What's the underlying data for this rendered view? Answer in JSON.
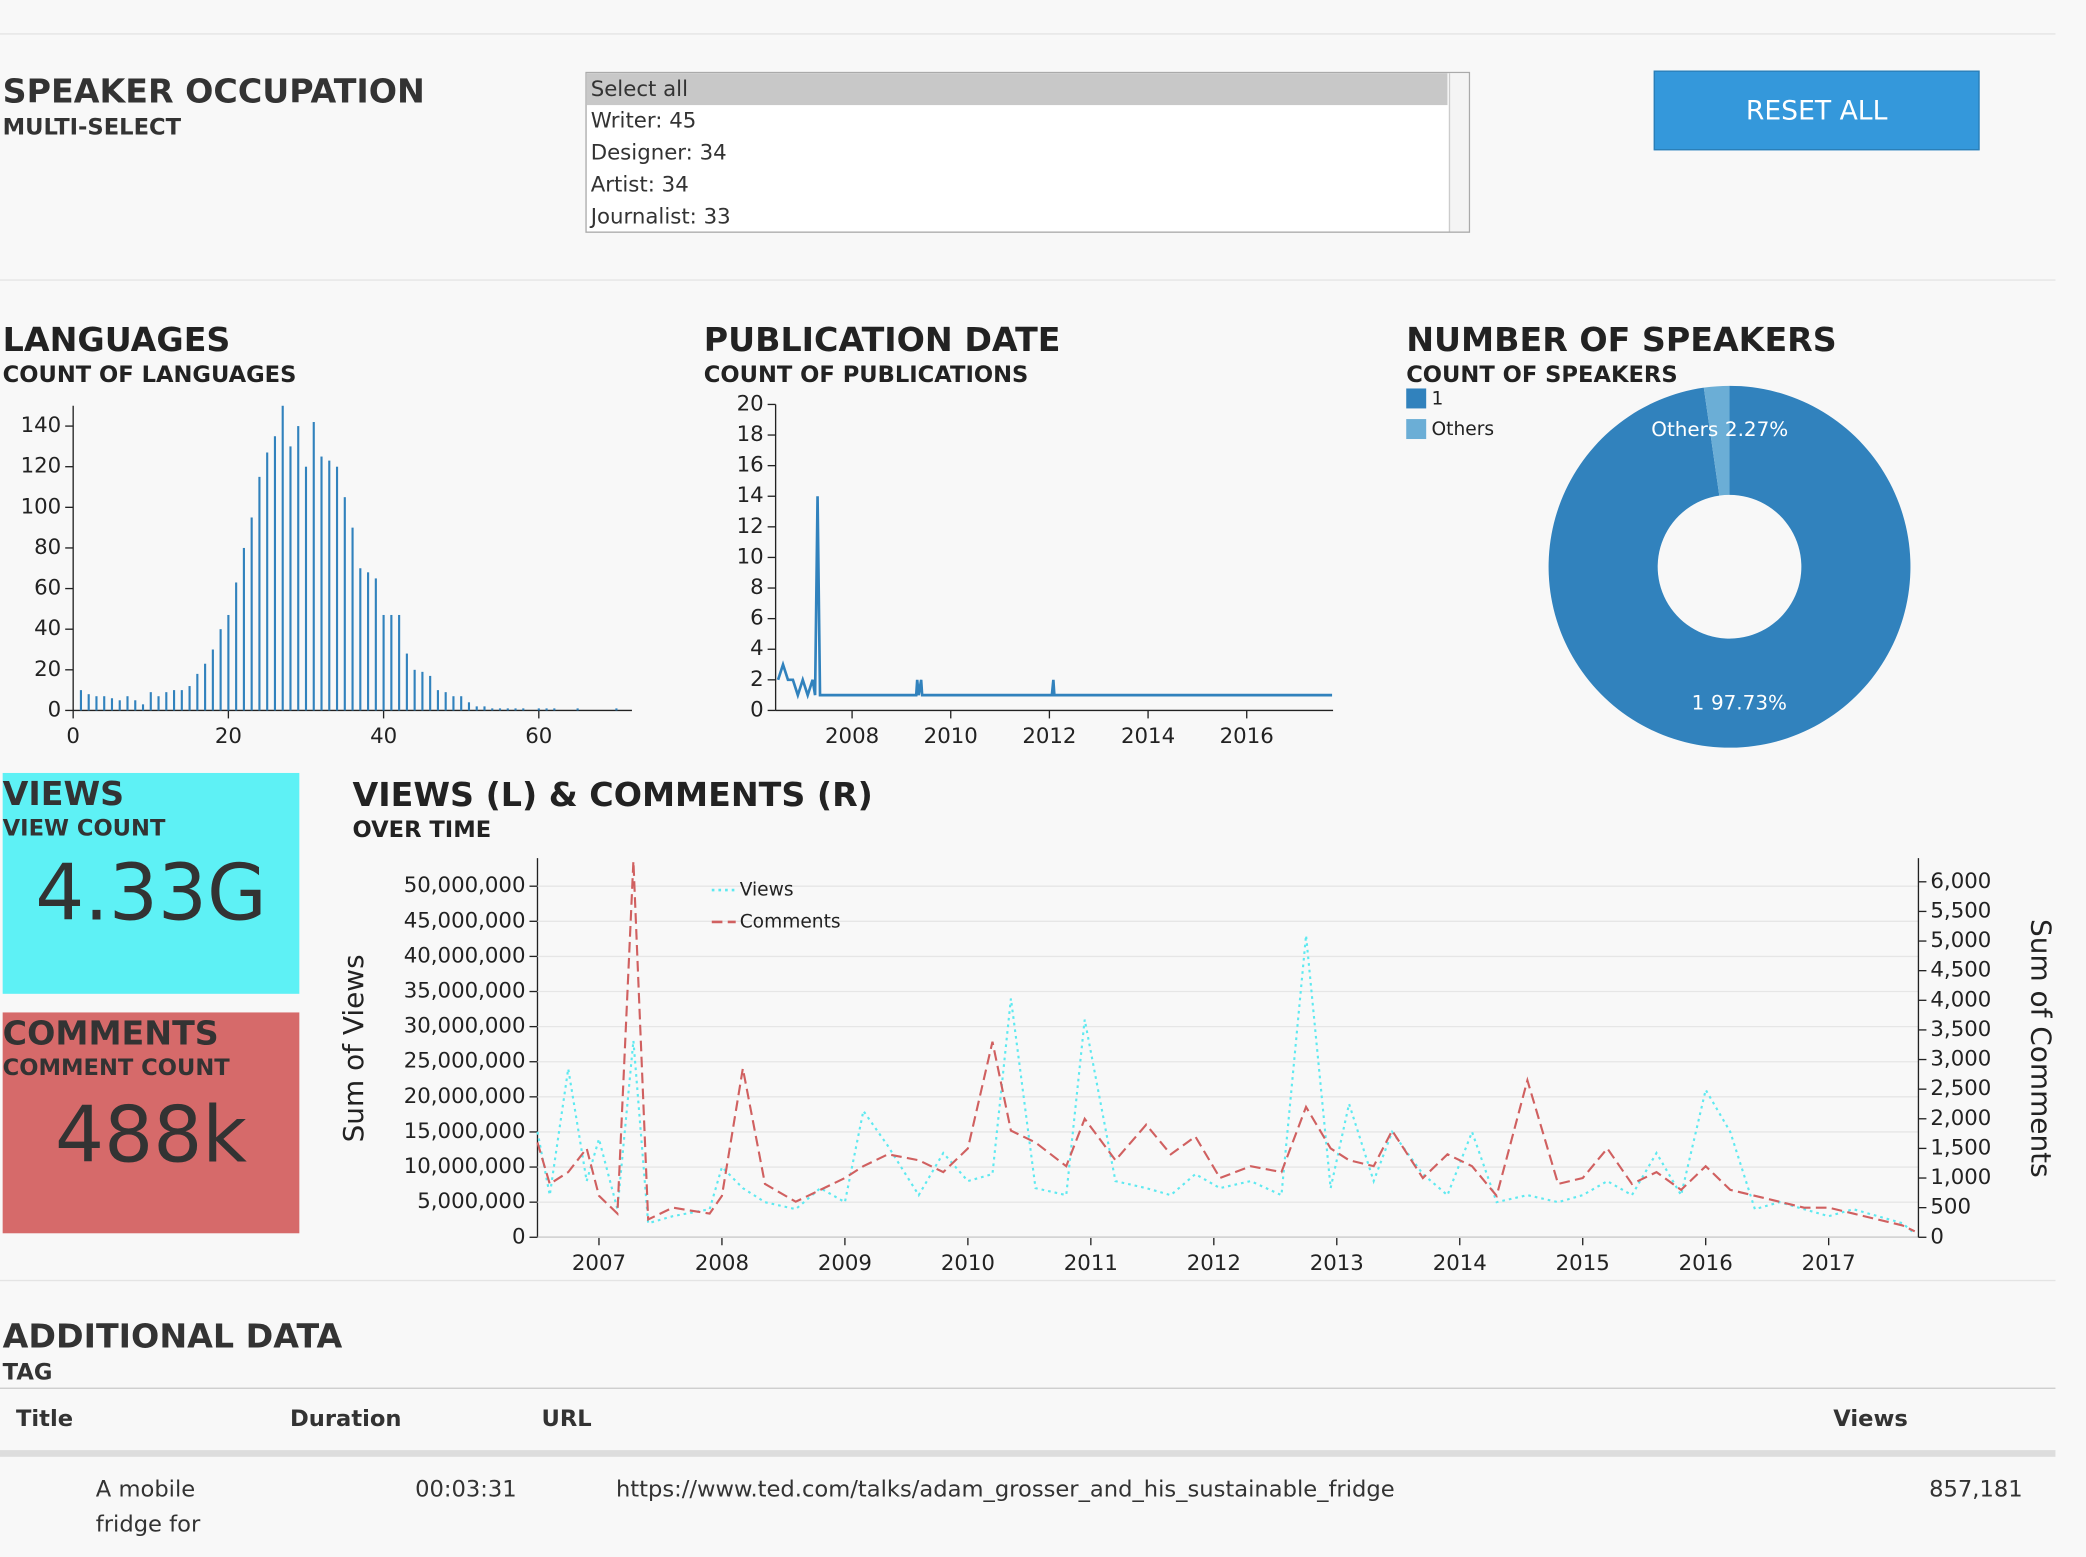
{
  "speaker_occupation": {
    "title": "SPEAKER OCCUPATION",
    "subtitle": "MULTI-SELECT",
    "options": [
      "Select all",
      "Writer: 45",
      "Designer: 34",
      "Artist: 34",
      "Journalist: 33"
    ],
    "button": "RESET ALL"
  },
  "kpis": [
    {
      "title": "VIEWS",
      "subtitle": "VIEW COUNT",
      "value": "4.33G",
      "color": "#5ef1f5"
    },
    {
      "title": "COMMENTS",
      "subtitle": "COMMENT COUNT",
      "value": "488k",
      "color": "#d66a6a"
    }
  ],
  "table": {
    "title": "ADDITIONAL DATA",
    "subtitle": "TAG",
    "columns": [
      "Title",
      "Duration",
      "URL",
      "Views"
    ],
    "rows": [
      [
        "A mobile fridge for",
        "00:03:31",
        "https://www.ted.com/talks/adam_grosser_and_his_sustainable_fridge",
        "857,181"
      ]
    ]
  },
  "chart_data": [
    {
      "type": "bar",
      "title": "LANGUAGES",
      "subtitle": "COUNT OF LANGUAGES",
      "color": "#3182bd",
      "x": [
        0,
        1,
        2,
        3,
        4,
        5,
        6,
        7,
        8,
        9,
        10,
        11,
        12,
        13,
        14,
        15,
        16,
        17,
        18,
        19,
        20,
        21,
        22,
        23,
        24,
        25,
        26,
        27,
        28,
        29,
        30,
        31,
        32,
        33,
        34,
        35,
        36,
        37,
        38,
        39,
        40,
        41,
        42,
        43,
        44,
        45,
        46,
        47,
        48,
        49,
        50,
        51,
        52,
        53,
        54,
        55,
        56,
        57,
        58,
        59,
        60,
        61,
        62,
        63,
        64,
        65,
        66,
        67,
        68,
        69,
        70
      ],
      "values": [
        0,
        10,
        8,
        7,
        7,
        6,
        5,
        7,
        5,
        3,
        9,
        7,
        9,
        10,
        10,
        12,
        18,
        23,
        30,
        40,
        47,
        63,
        80,
        95,
        115,
        127,
        135,
        150,
        130,
        140,
        120,
        142,
        125,
        123,
        120,
        105,
        90,
        70,
        68,
        65,
        47,
        47,
        47,
        28,
        20,
        19,
        17,
        10,
        9,
        7,
        7,
        4,
        2,
        2,
        1,
        1,
        1,
        1,
        1,
        0,
        1,
        1,
        1,
        0,
        0,
        1,
        0,
        0,
        0,
        0,
        1
      ],
      "xlim": [
        0,
        72
      ],
      "ylim": [
        0,
        150
      ],
      "xticks": [
        0,
        20,
        40,
        60
      ],
      "yticks": [
        0,
        20,
        40,
        60,
        80,
        100,
        120,
        140
      ]
    },
    {
      "type": "line",
      "title": "PUBLICATION DATE",
      "subtitle": "COUNT OF PUBLICATIONS",
      "color": "#3182bd",
      "x": [
        2006.5,
        2006.6,
        2006.7,
        2006.8,
        2006.9,
        2007.0,
        2007.1,
        2007.2,
        2007.25,
        2007.3,
        2007.35,
        2009.3,
        2009.32,
        2009.35,
        2009.4,
        2009.42,
        2009.45,
        2012.05,
        2012.08,
        2012.1,
        2017.73
      ],
      "values": [
        2,
        3,
        2,
        2,
        1,
        2,
        1,
        2,
        1,
        14,
        1,
        1,
        2,
        1,
        2,
        1,
        1,
        1,
        2,
        1,
        1
      ],
      "xlim": [
        2006.45,
        2017.75
      ],
      "ylim": [
        0,
        20
      ],
      "xticks": [
        2008,
        2010,
        2012,
        2014,
        2016
      ],
      "yticks": [
        0,
        2,
        4,
        6,
        8,
        10,
        12,
        14,
        16,
        18,
        20
      ]
    },
    {
      "type": "pie",
      "title": "NUMBER OF SPEAKERS",
      "subtitle": "COUNT OF SPEAKERS",
      "categories": [
        "1",
        "Others"
      ],
      "values": [
        97.73,
        2.27
      ],
      "value_labels": [
        "97.73%",
        "2.27%"
      ],
      "colors": [
        "#3182bd",
        "#6baed6"
      ]
    },
    {
      "type": "line",
      "title": "VIEWS (L) & COMMENTS (R)",
      "subtitle": "OVER TIME",
      "ylabel": "Sum of Views",
      "y2label": "Sum of Comments",
      "grid": true,
      "x": [
        2006.5,
        2006.6,
        2006.75,
        2006.9,
        2007.0,
        2007.15,
        2007.28,
        2007.4,
        2007.6,
        2007.9,
        2008.0,
        2008.17,
        2008.35,
        2008.6,
        2008.8,
        2009.0,
        2009.15,
        2009.35,
        2009.6,
        2009.8,
        2010.0,
        2010.2,
        2010.35,
        2010.55,
        2010.8,
        2010.95,
        2011.2,
        2011.45,
        2011.65,
        2011.85,
        2012.05,
        2012.3,
        2012.55,
        2012.75,
        2012.95,
        2013.1,
        2013.3,
        2013.45,
        2013.7,
        2013.9,
        2014.1,
        2014.3,
        2014.55,
        2014.8,
        2015.0,
        2015.2,
        2015.4,
        2015.6,
        2015.8,
        2016.0,
        2016.2,
        2016.4,
        2016.6,
        2016.8,
        2017.0,
        2017.2,
        2017.4,
        2017.6,
        2017.7
      ],
      "series": [
        {
          "name": "Views",
          "color": "#5ee9f0",
          "dash": "2 3",
          "values": [
            15000000,
            6000000,
            24000000,
            8000000,
            14000000,
            4000000,
            28000000,
            2000000,
            3000000,
            4000000,
            10000000,
            7000000,
            5000000,
            4000000,
            7000000,
            5000000,
            18000000,
            13000000,
            6000000,
            12000000,
            8000000,
            9000000,
            34000000,
            7000000,
            6000000,
            31000000,
            8000000,
            7000000,
            6000000,
            9000000,
            7000000,
            8000000,
            6000000,
            43000000,
            7000000,
            19000000,
            8000000,
            15000000,
            9000000,
            6000000,
            15000000,
            5000000,
            6000000,
            5000000,
            6000000,
            8000000,
            6000000,
            12000000,
            6000000,
            21000000,
            15000000,
            4000000,
            5000000,
            4000000,
            3000000,
            4000000,
            3000000,
            2000000,
            500000
          ]
        },
        {
          "name": "Comments",
          "color": "#d06060",
          "dash": "8 4",
          "axis": "y2",
          "values": [
            1600,
            900,
            1100,
            1500,
            700,
            400,
            6350,
            300,
            500,
            400,
            700,
            2850,
            900,
            600,
            800,
            1000,
            1200,
            1400,
            1300,
            1100,
            1500,
            3300,
            1800,
            1600,
            1200,
            2000,
            1300,
            1900,
            1400,
            1700,
            1000,
            1200,
            1100,
            2200,
            1500,
            1300,
            1200,
            1800,
            1000,
            1400,
            1200,
            700,
            2650,
            900,
            1000,
            1500,
            900,
            1100,
            800,
            1200,
            800,
            700,
            600,
            500,
            500,
            400,
            300,
            200,
            100
          ]
        }
      ],
      "xlim": [
        2006.5,
        2017.73
      ],
      "ylim": [
        0,
        54000000
      ],
      "y2lim": [
        0,
        6400
      ],
      "xticks": [
        2007,
        2008,
        2009,
        2010,
        2011,
        2012,
        2013,
        2014,
        2015,
        2016,
        2017
      ],
      "yticks": [
        0,
        {
          "value": 5000000,
          "label": "5,000,000"
        },
        {
          "value": 10000000,
          "label": "10,000,000"
        },
        {
          "value": 15000000,
          "label": "15,000,000"
        },
        {
          "value": 20000000,
          "label": "20,000,000"
        },
        {
          "value": 25000000,
          "label": "25,000,000"
        },
        {
          "value": 30000000,
          "label": "30,000,000"
        },
        {
          "value": 35000000,
          "label": "35,000,000"
        },
        {
          "value": 40000000,
          "label": "40,000,000"
        },
        {
          "value": 45000000,
          "label": "45,000,000"
        },
        {
          "value": 50000000,
          "label": "50,000,000"
        }
      ],
      "y2ticks": [
        0,
        500,
        {
          "value": 1000,
          "label": "1,000"
        },
        {
          "value": 1500,
          "label": "1,500"
        },
        {
          "value": 2000,
          "label": "2,000"
        },
        {
          "value": 2500,
          "label": "2,500"
        },
        {
          "value": 3000,
          "label": "3,000"
        },
        {
          "value": 3500,
          "label": "3,500"
        },
        {
          "value": 4000,
          "label": "4,000"
        },
        {
          "value": 4500,
          "label": "4,500"
        },
        {
          "value": 5000,
          "label": "5,000"
        },
        {
          "value": 5500,
          "label": "5,500"
        },
        {
          "value": 6000,
          "label": "6,000"
        }
      ]
    }
  ]
}
